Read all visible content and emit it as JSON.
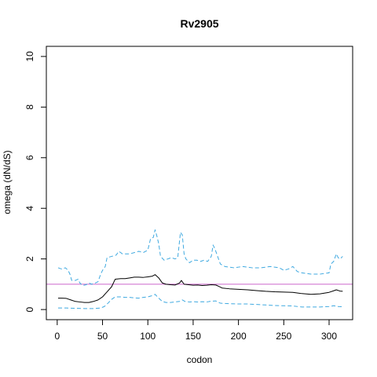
{
  "chart_data": {
    "type": "line",
    "title": "Rv2905",
    "xlabel": "codon",
    "ylabel": "omega (dN/dS)",
    "xlim": [
      -12,
      326
    ],
    "ylim": [
      -0.4,
      10.4
    ],
    "x_ticks": [
      0,
      50,
      100,
      150,
      200,
      250,
      300
    ],
    "y_ticks": [
      0,
      2,
      4,
      6,
      8,
      10
    ],
    "reference_line": {
      "y": 1,
      "color": "#cc66cc"
    },
    "grid": false,
    "legend": "none",
    "series": [
      {
        "role": "estimate",
        "color": "#000000",
        "dashed": false,
        "points": [
          [
            1,
            0.45
          ],
          [
            5,
            0.45
          ],
          [
            10,
            0.44
          ],
          [
            15,
            0.38
          ],
          [
            20,
            0.32
          ],
          [
            25,
            0.3
          ],
          [
            30,
            0.28
          ],
          [
            35,
            0.28
          ],
          [
            40,
            0.32
          ],
          [
            45,
            0.38
          ],
          [
            50,
            0.5
          ],
          [
            55,
            0.7
          ],
          [
            60,
            0.9
          ],
          [
            64,
            1.2
          ],
          [
            70,
            1.22
          ],
          [
            75,
            1.22
          ],
          [
            80,
            1.25
          ],
          [
            85,
            1.28
          ],
          [
            90,
            1.28
          ],
          [
            95,
            1.27
          ],
          [
            100,
            1.29
          ],
          [
            105,
            1.32
          ],
          [
            108,
            1.38
          ],
          [
            112,
            1.25
          ],
          [
            116,
            1.05
          ],
          [
            120,
            1.0
          ],
          [
            125,
            0.98
          ],
          [
            130,
            0.97
          ],
          [
            135,
            1.05
          ],
          [
            137,
            1.15
          ],
          [
            140,
            1.0
          ],
          [
            145,
            0.98
          ],
          [
            150,
            0.96
          ],
          [
            155,
            0.97
          ],
          [
            160,
            0.95
          ],
          [
            165,
            0.96
          ],
          [
            170,
            0.98
          ],
          [
            175,
            0.97
          ],
          [
            178,
            0.92
          ],
          [
            182,
            0.85
          ],
          [
            190,
            0.82
          ],
          [
            200,
            0.8
          ],
          [
            210,
            0.78
          ],
          [
            220,
            0.75
          ],
          [
            230,
            0.72
          ],
          [
            240,
            0.7
          ],
          [
            250,
            0.69
          ],
          [
            260,
            0.68
          ],
          [
            270,
            0.63
          ],
          [
            280,
            0.6
          ],
          [
            290,
            0.62
          ],
          [
            300,
            0.68
          ],
          [
            305,
            0.74
          ],
          [
            308,
            0.78
          ],
          [
            312,
            0.73
          ],
          [
            315,
            0.72
          ]
        ]
      },
      {
        "role": "upper-bound",
        "color": "#3fa9e0",
        "dashed": true,
        "points": [
          [
            1,
            1.65
          ],
          [
            5,
            1.6
          ],
          [
            9,
            1.65
          ],
          [
            12,
            1.55
          ],
          [
            14,
            1.4
          ],
          [
            16,
            1.15
          ],
          [
            20,
            1.15
          ],
          [
            23,
            1.2
          ],
          [
            25,
            1.05
          ],
          [
            28,
            0.95
          ],
          [
            32,
            0.98
          ],
          [
            35,
            1.05
          ],
          [
            38,
            1.0
          ],
          [
            42,
            1.05
          ],
          [
            45,
            1.1
          ],
          [
            48,
            1.4
          ],
          [
            50,
            1.55
          ],
          [
            53,
            1.7
          ],
          [
            55,
            2.05
          ],
          [
            60,
            2.1
          ],
          [
            65,
            2.15
          ],
          [
            68,
            2.3
          ],
          [
            72,
            2.2
          ],
          [
            80,
            2.2
          ],
          [
            85,
            2.25
          ],
          [
            90,
            2.3
          ],
          [
            95,
            2.25
          ],
          [
            100,
            2.35
          ],
          [
            103,
            2.8
          ],
          [
            106,
            2.85
          ],
          [
            108,
            3.15
          ],
          [
            110,
            2.9
          ],
          [
            112,
            2.6
          ],
          [
            114,
            2.1
          ],
          [
            118,
            1.95
          ],
          [
            122,
            2.0
          ],
          [
            126,
            2.05
          ],
          [
            130,
            2.0
          ],
          [
            133,
            2.05
          ],
          [
            136,
            3.05
          ],
          [
            138,
            2.95
          ],
          [
            140,
            2.2
          ],
          [
            142,
            2.0
          ],
          [
            146,
            1.85
          ],
          [
            150,
            1.95
          ],
          [
            154,
            1.95
          ],
          [
            158,
            1.9
          ],
          [
            162,
            1.95
          ],
          [
            166,
            1.9
          ],
          [
            170,
            2.1
          ],
          [
            172,
            2.55
          ],
          [
            174,
            2.4
          ],
          [
            176,
            2.2
          ],
          [
            178,
            2.0
          ],
          [
            180,
            1.8
          ],
          [
            185,
            1.7
          ],
          [
            195,
            1.65
          ],
          [
            205,
            1.7
          ],
          [
            215,
            1.65
          ],
          [
            225,
            1.65
          ],
          [
            235,
            1.7
          ],
          [
            245,
            1.65
          ],
          [
            250,
            1.55
          ],
          [
            255,
            1.6
          ],
          [
            260,
            1.7
          ],
          [
            265,
            1.5
          ],
          [
            270,
            1.45
          ],
          [
            280,
            1.4
          ],
          [
            290,
            1.4
          ],
          [
            300,
            1.45
          ],
          [
            302,
            1.8
          ],
          [
            305,
            1.9
          ],
          [
            308,
            2.2
          ],
          [
            310,
            2.05
          ],
          [
            312,
            2.0
          ],
          [
            315,
            2.1
          ]
        ]
      },
      {
        "role": "lower-bound",
        "color": "#3fa9e0",
        "dashed": true,
        "points": [
          [
            1,
            0.06
          ],
          [
            10,
            0.06
          ],
          [
            20,
            0.05
          ],
          [
            30,
            0.04
          ],
          [
            40,
            0.04
          ],
          [
            48,
            0.06
          ],
          [
            52,
            0.12
          ],
          [
            56,
            0.25
          ],
          [
            60,
            0.4
          ],
          [
            64,
            0.5
          ],
          [
            70,
            0.5
          ],
          [
            75,
            0.48
          ],
          [
            80,
            0.48
          ],
          [
            85,
            0.46
          ],
          [
            90,
            0.45
          ],
          [
            95,
            0.48
          ],
          [
            100,
            0.5
          ],
          [
            105,
            0.55
          ],
          [
            108,
            0.6
          ],
          [
            112,
            0.45
          ],
          [
            116,
            0.32
          ],
          [
            120,
            0.28
          ],
          [
            125,
            0.28
          ],
          [
            130,
            0.3
          ],
          [
            135,
            0.32
          ],
          [
            138,
            0.38
          ],
          [
            141,
            0.32
          ],
          [
            146,
            0.3
          ],
          [
            150,
            0.31
          ],
          [
            155,
            0.3
          ],
          [
            160,
            0.31
          ],
          [
            165,
            0.3
          ],
          [
            170,
            0.33
          ],
          [
            175,
            0.34
          ],
          [
            180,
            0.25
          ],
          [
            190,
            0.23
          ],
          [
            200,
            0.22
          ],
          [
            210,
            0.22
          ],
          [
            220,
            0.2
          ],
          [
            230,
            0.18
          ],
          [
            240,
            0.16
          ],
          [
            250,
            0.15
          ],
          [
            260,
            0.14
          ],
          [
            270,
            0.1
          ],
          [
            280,
            0.1
          ],
          [
            290,
            0.1
          ],
          [
            300,
            0.12
          ],
          [
            305,
            0.15
          ],
          [
            310,
            0.12
          ],
          [
            315,
            0.11
          ]
        ]
      }
    ]
  }
}
